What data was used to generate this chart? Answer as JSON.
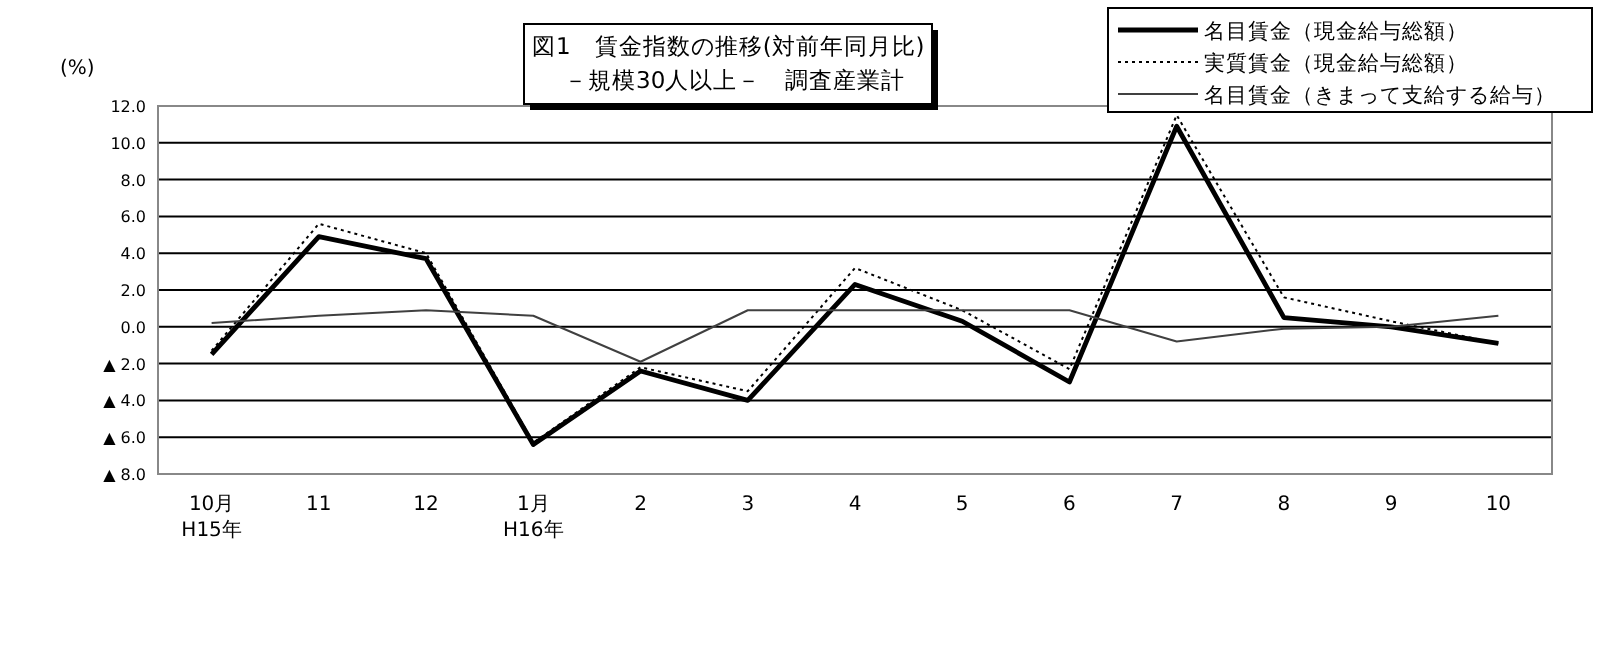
{
  "chart_data": {
    "type": "line",
    "title": "図1　賃金指数の推移(対前年同月比)",
    "subtitle": "－規模30人以上－　調査産業計",
    "ylabel": "(%)",
    "categories": [
      "10月\nH15年",
      "11",
      "12",
      "1月\nH16年",
      "2",
      "3",
      "4",
      "5",
      "6",
      "7",
      "8",
      "9",
      "10"
    ],
    "series": [
      {
        "name": "名目賃金（現金給与総額）",
        "color": "#000000",
        "line_style": "solid",
        "values": [
          -1.5,
          4.9,
          3.7,
          -6.4,
          -2.4,
          -4.0,
          2.3,
          0.3,
          -3.0,
          10.9,
          0.5,
          0.0,
          -0.9
        ]
      },
      {
        "name": "実質賃金（現金給与総額）",
        "color": "#000000",
        "line_style": "dotted",
        "values": [
          -1.3,
          5.6,
          4.0,
          -6.3,
          -2.2,
          -3.5,
          3.2,
          0.9,
          -2.3,
          11.5,
          1.6,
          0.3,
          -0.9
        ]
      },
      {
        "name": "名目賃金（きまって支給する給与）",
        "color": "#404040",
        "line_style": "solid",
        "values": [
          0.2,
          0.6,
          0.9,
          0.6,
          -1.9,
          0.9,
          0.9,
          0.9,
          0.9,
          -0.8,
          -0.1,
          0.0,
          0.6
        ]
      }
    ],
    "ylim": [
      -8,
      12
    ],
    "yticks": [
      {
        "value": 12,
        "label": "12.0"
      },
      {
        "value": 10,
        "label": "10.0"
      },
      {
        "value": 8,
        "label": "8.0"
      },
      {
        "value": 6,
        "label": "6.0"
      },
      {
        "value": 4,
        "label": "4.0"
      },
      {
        "value": 2,
        "label": "2.0"
      },
      {
        "value": 0,
        "label": "0.0"
      },
      {
        "value": -2,
        "label": "▲ 2.0"
      },
      {
        "value": -4,
        "label": "▲ 4.0"
      },
      {
        "value": -6,
        "label": "▲ 6.0"
      },
      {
        "value": -8,
        "label": "▲ 8.0"
      }
    ],
    "grid": "y",
    "legend": "top right",
    "marker": "none"
  }
}
